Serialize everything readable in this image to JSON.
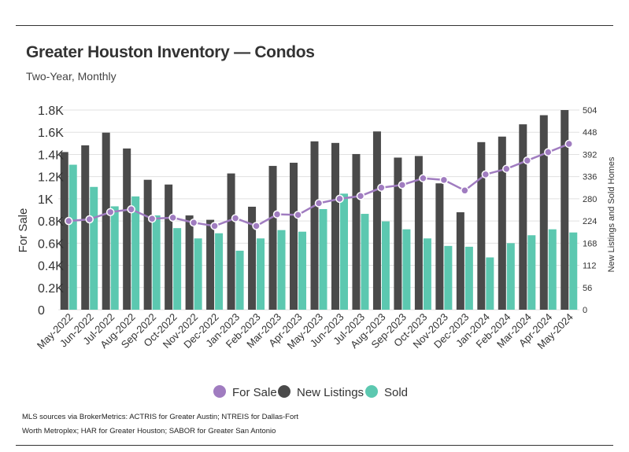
{
  "header": {
    "title": "Greater Houston Inventory — Condos",
    "subtitle": "Two-Year, Monthly"
  },
  "footer": {
    "line1": "MLS sources via BrokerMetrics: ACTRIS for Greater Austin; NTREIS for Dallas-Fort",
    "line2": "Worth Metroplex; HAR for Greater Houston; SABOR for Greater San Antonio"
  },
  "colors": {
    "for_sale": "#a07cc0",
    "new_listings": "#4a4a4a",
    "sold": "#5cc8b0",
    "grid": "#e0e0e0",
    "axis_text": "#333333"
  },
  "chart_data": {
    "type": "bar",
    "categories": [
      "May-2022",
      "Jun-2022",
      "Jul-2022",
      "Aug-2022",
      "Sep-2022",
      "Oct-2022",
      "Nov-2022",
      "Dec-2022",
      "Jan-2023",
      "Feb-2023",
      "Mar-2023",
      "Apr-2023",
      "May-2023",
      "Jun-2023",
      "Jul-2023",
      "Aug-2023",
      "Sep-2023",
      "Oct-2023",
      "Nov-2023",
      "Dec-2023",
      "Jan-2024",
      "Feb-2024",
      "Mar-2024",
      "Apr-2024",
      "May-2024"
    ],
    "ylabel": "For Sale",
    "y2label": "New Listings and Sold Homes",
    "ylim": [
      0,
      1800
    ],
    "y2lim": [
      0,
      504
    ],
    "yticks": [
      0,
      200,
      400,
      600,
      800,
      1000,
      1200,
      1400,
      1600,
      1800
    ],
    "ytick_labels": [
      "0",
      "0.2K",
      "0.4K",
      "0.6K",
      "0.8K",
      "1K",
      "1.2K",
      "1.4K",
      "1.6K",
      "1.8K"
    ],
    "y2ticks": [
      0,
      56,
      112,
      168,
      224,
      280,
      336,
      392,
      448,
      504
    ],
    "grid": true,
    "legend_position": "bottom",
    "series": [
      {
        "name": "For Sale",
        "type": "line",
        "axis": "left",
        "values": [
          800,
          815,
          880,
          905,
          820,
          830,
          785,
          755,
          825,
          755,
          860,
          855,
          960,
          1000,
          1025,
          1100,
          1125,
          1185,
          1170,
          1075,
          1220,
          1270,
          1345,
          1420,
          1495
        ]
      },
      {
        "name": "New Listings",
        "type": "bar",
        "axis": "right",
        "values": [
          398,
          415,
          447,
          407,
          328,
          316,
          238,
          227,
          344,
          260,
          363,
          371,
          425,
          421,
          393,
          450,
          384,
          388,
          319,
          246,
          423,
          437,
          468,
          491,
          504
        ]
      },
      {
        "name": "Sold",
        "type": "bar",
        "axis": "right",
        "values": [
          366,
          310,
          261,
          286,
          238,
          206,
          180,
          193,
          149,
          180,
          201,
          197,
          254,
          293,
          242,
          223,
          203,
          180,
          161,
          159,
          132,
          168,
          188,
          203,
          195
        ]
      }
    ]
  }
}
